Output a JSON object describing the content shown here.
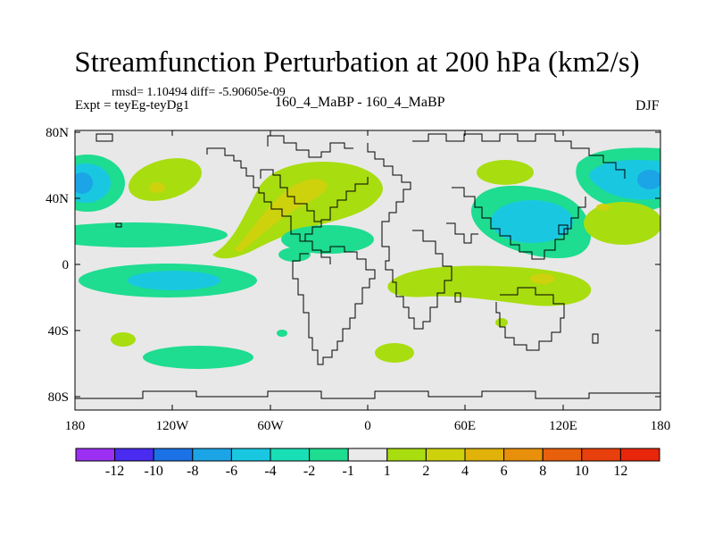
{
  "title": "Streamfunction Perturbation at 200 hPa (km2/s)",
  "stats": "rmsd= 1.10494 diff= -5.90605e-09",
  "experiment": "Expt = teyEg-teyDg1",
  "case_label": "160_4_MaBP - 160_4_MaBP",
  "season": "DJF",
  "colors": {
    "neutral": "#e8e8e8",
    "c_neg_12": "#9b30f2",
    "c_neg_10": "#4a2cf0",
    "c_neg_8": "#1b72e6",
    "c_neg_6": "#1ba4e6",
    "c_neg_4": "#19c8e0",
    "c_neg_2": "#19dfb6",
    "c_neg_1": "#1edc90",
    "c_1": "#eaeaea",
    "c_2": "#a8dd10",
    "c_4": "#cdd20d",
    "c_6": "#e0b20a",
    "c_8": "#e8900b",
    "c_10": "#e8600c",
    "c_12": "#e8260b"
  },
  "map": {
    "lat_ticks": [
      "80N",
      "40N",
      "0",
      "40S",
      "80S"
    ],
    "lon_ticks": [
      "180",
      "120W",
      "60W",
      "0",
      "60E",
      "120E",
      "180"
    ]
  },
  "colorbar": {
    "labels": [
      "-12",
      "-10",
      "-8",
      "-6",
      "-4",
      "-2",
      "-1",
      "1",
      "2",
      "4",
      "6",
      "8",
      "10",
      "12"
    ]
  }
}
